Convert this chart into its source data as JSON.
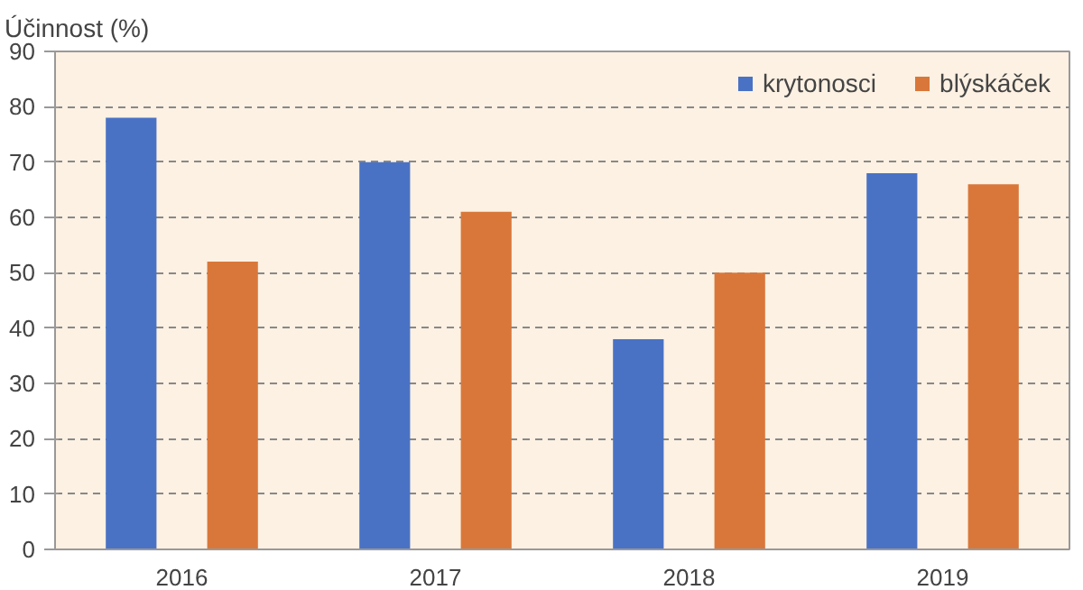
{
  "chart_data": {
    "type": "bar",
    "ylabel": "Účinnost (%)",
    "categories": [
      "2016",
      "2017",
      "2018",
      "2019"
    ],
    "series": [
      {
        "name": "krytonosci",
        "color": "#4a72c4",
        "values": [
          78,
          70,
          38,
          68
        ]
      },
      {
        "name": "blýskáček",
        "color": "#d9773a",
        "values": [
          52,
          61,
          50,
          66
        ]
      }
    ],
    "ylim": [
      0,
      90
    ],
    "yticks": [
      0,
      10,
      20,
      30,
      40,
      50,
      60,
      70,
      80,
      90
    ],
    "grid": "y",
    "legend": "top right"
  }
}
